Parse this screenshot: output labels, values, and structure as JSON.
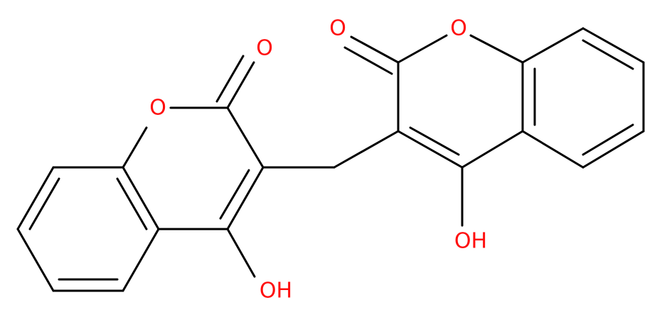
{
  "molecules": [
    {
      "ring_oxygen": "O",
      "carbonyl_oxygen": "O",
      "hydroxyl": "OH"
    },
    {
      "ring_oxygen": "O",
      "carbonyl_oxygen": "O",
      "hydroxyl": "OH"
    }
  ]
}
